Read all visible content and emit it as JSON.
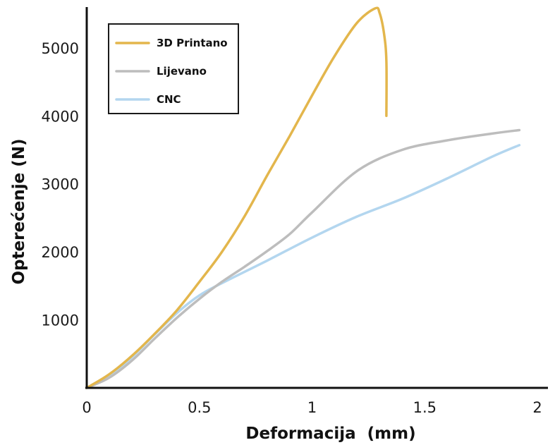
{
  "chart_data": {
    "type": "line",
    "title": "",
    "xlabel": "Deformacija  (mm)",
    "ylabel": "Opterećenje (N)",
    "xlim": [
      0,
      2.0
    ],
    "ylim": [
      0,
      5600
    ],
    "x_ticks": [
      0,
      0.5,
      1,
      1.5,
      2
    ],
    "x_tick_labels": [
      "0",
      "0.5",
      "1",
      "1.5",
      "2"
    ],
    "y_ticks": [
      1000,
      2000,
      3000,
      4000,
      5000
    ],
    "y_tick_labels": [
      "1000",
      "2000",
      "3000",
      "4000",
      "5000"
    ],
    "grid": false,
    "legend_position": "top-left",
    "series": [
      {
        "name": "3D Printano",
        "color": "#e3b64c",
        "points": [
          [
            0.0,
            0
          ],
          [
            0.1,
            200
          ],
          [
            0.2,
            470
          ],
          [
            0.3,
            790
          ],
          [
            0.4,
            1140
          ],
          [
            0.5,
            1560
          ],
          [
            0.6,
            2000
          ],
          [
            0.7,
            2520
          ],
          [
            0.8,
            3120
          ],
          [
            0.9,
            3700
          ],
          [
            1.0,
            4300
          ],
          [
            1.1,
            4880
          ],
          [
            1.2,
            5370
          ],
          [
            1.28,
            5580
          ],
          [
            1.3,
            5510
          ],
          [
            1.32,
            5200
          ],
          [
            1.33,
            4800
          ],
          [
            1.33,
            4000
          ]
        ]
      },
      {
        "name": "Lijevano",
        "color": "#bdbdbd",
        "points": [
          [
            0.0,
            0
          ],
          [
            0.1,
            150
          ],
          [
            0.2,
            400
          ],
          [
            0.3,
            720
          ],
          [
            0.4,
            1030
          ],
          [
            0.5,
            1310
          ],
          [
            0.6,
            1560
          ],
          [
            0.7,
            1780
          ],
          [
            0.8,
            2010
          ],
          [
            0.9,
            2260
          ],
          [
            1.0,
            2580
          ],
          [
            1.2,
            3190
          ],
          [
            1.4,
            3500
          ],
          [
            1.6,
            3640
          ],
          [
            1.8,
            3740
          ],
          [
            1.92,
            3790
          ]
        ]
      },
      {
        "name": "CNC",
        "color": "#b3d6ef",
        "points": [
          [
            0.0,
            0
          ],
          [
            0.1,
            170
          ],
          [
            0.2,
            450
          ],
          [
            0.3,
            780
          ],
          [
            0.4,
            1100
          ],
          [
            0.5,
            1360
          ],
          [
            0.6,
            1540
          ],
          [
            0.8,
            1870
          ],
          [
            1.0,
            2210
          ],
          [
            1.2,
            2520
          ],
          [
            1.4,
            2780
          ],
          [
            1.6,
            3080
          ],
          [
            1.8,
            3400
          ],
          [
            1.92,
            3570
          ]
        ]
      }
    ]
  }
}
